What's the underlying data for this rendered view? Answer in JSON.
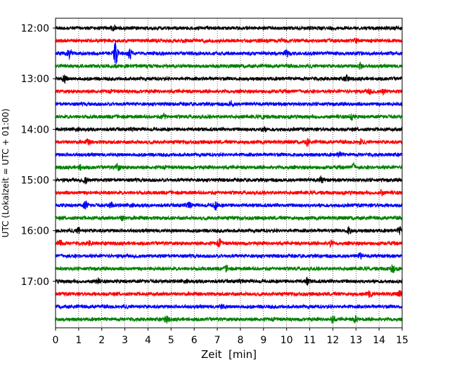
{
  "chart_data": {
    "type": "line",
    "title": "",
    "xlabel": "Zeit  [min]",
    "ylabel": "UTC (Lokalzeit = UTC + 01:00)",
    "xlim": [
      0,
      15
    ],
    "x_ticks": [
      0,
      1,
      2,
      3,
      4,
      5,
      6,
      7,
      8,
      9,
      10,
      11,
      12,
      13,
      14,
      15
    ],
    "grid": "vertical dotted lines at each minute",
    "ylim": [
      "12:00",
      "17:45"
    ],
    "y_tick_labels": [
      "12:00",
      "13:00",
      "14:00",
      "15:00",
      "16:00",
      "17:00"
    ],
    "trace_interval_minutes": 15,
    "color_cycle": [
      "#000000",
      "#ff0000",
      "#0000ff",
      "#008000"
    ],
    "series": [
      {
        "start": "12:00",
        "color": "#000000",
        "events": [
          {
            "t": 2.5,
            "amp": 1.5
          }
        ]
      },
      {
        "start": "12:15",
        "color": "#ff0000",
        "events": [
          {
            "t": 9.8,
            "amp": 1.2
          },
          {
            "t": 13.0,
            "amp": 1.0
          }
        ]
      },
      {
        "start": "12:30",
        "color": "#0000ff",
        "events": [
          {
            "t": 0.6,
            "amp": 2.6
          },
          {
            "t": 2.6,
            "amp": 6.5
          },
          {
            "t": 3.2,
            "amp": 3.0
          },
          {
            "t": 10.0,
            "amp": 2.2
          }
        ]
      },
      {
        "start": "12:45",
        "color": "#008000",
        "events": [
          {
            "t": 13.2,
            "amp": 1.5
          }
        ]
      },
      {
        "start": "13:00",
        "color": "#000000",
        "events": [
          {
            "t": 0.4,
            "amp": 1.8
          },
          {
            "t": 12.6,
            "amp": 1.4
          }
        ]
      },
      {
        "start": "13:15",
        "color": "#ff0000",
        "events": [
          {
            "t": 13.6,
            "amp": 1.4
          },
          {
            "t": 14.2,
            "amp": 1.2
          }
        ]
      },
      {
        "start": "13:30",
        "color": "#0000ff",
        "events": [
          {
            "t": 7.6,
            "amp": 1.3
          }
        ]
      },
      {
        "start": "13:45",
        "color": "#008000",
        "events": [
          {
            "t": 4.7,
            "amp": 1.4
          },
          {
            "t": 9.0,
            "amp": 1.3
          },
          {
            "t": 12.8,
            "amp": 1.5
          }
        ]
      },
      {
        "start": "14:00",
        "color": "#000000",
        "events": [
          {
            "t": 9.0,
            "amp": 1.3
          }
        ]
      },
      {
        "start": "14:15",
        "color": "#ff0000",
        "events": [
          {
            "t": 1.4,
            "amp": 1.4
          },
          {
            "t": 10.9,
            "amp": 1.7
          },
          {
            "t": 13.2,
            "amp": 1.3
          }
        ]
      },
      {
        "start": "14:30",
        "color": "#0000ff",
        "events": [
          {
            "t": 12.3,
            "amp": 1.3
          }
        ]
      },
      {
        "start": "14:45",
        "color": "#008000",
        "events": [
          {
            "t": 1.1,
            "amp": 1.2
          },
          {
            "t": 2.7,
            "amp": 1.9
          },
          {
            "t": 12.9,
            "amp": 1.9
          }
        ]
      },
      {
        "start": "15:00",
        "color": "#000000",
        "events": [
          {
            "t": 1.3,
            "amp": 1.6
          },
          {
            "t": 11.5,
            "amp": 1.4
          }
        ]
      },
      {
        "start": "15:15",
        "color": "#ff0000",
        "events": [
          {
            "t": 14.1,
            "amp": 1.2
          }
        ]
      },
      {
        "start": "15:30",
        "color": "#0000ff",
        "events": [
          {
            "t": 1.3,
            "amp": 2.1
          },
          {
            "t": 2.4,
            "amp": 1.4
          },
          {
            "t": 5.8,
            "amp": 1.3
          },
          {
            "t": 6.9,
            "amp": 2.4
          }
        ]
      },
      {
        "start": "15:45",
        "color": "#008000",
        "events": [
          {
            "t": 2.9,
            "amp": 1.1
          }
        ]
      },
      {
        "start": "16:00",
        "color": "#000000",
        "events": [
          {
            "t": 1.0,
            "amp": 1.4
          },
          {
            "t": 12.7,
            "amp": 1.6
          },
          {
            "t": 14.9,
            "amp": 1.7
          }
        ]
      },
      {
        "start": "16:15",
        "color": "#ff0000",
        "events": [
          {
            "t": 0.2,
            "amp": 1.5
          },
          {
            "t": 1.5,
            "amp": 1.3
          },
          {
            "t": 7.1,
            "amp": 1.8
          },
          {
            "t": 11.9,
            "amp": 1.4
          }
        ]
      },
      {
        "start": "16:30",
        "color": "#0000ff",
        "events": [
          {
            "t": 13.2,
            "amp": 1.4
          }
        ]
      },
      {
        "start": "16:45",
        "color": "#008000",
        "events": [
          {
            "t": 7.4,
            "amp": 1.3
          },
          {
            "t": 14.6,
            "amp": 2.2
          }
        ]
      },
      {
        "start": "17:00",
        "color": "#000000",
        "events": [
          {
            "t": 1.8,
            "amp": 1.3
          },
          {
            "t": 10.9,
            "amp": 1.7
          }
        ]
      },
      {
        "start": "17:15",
        "color": "#ff0000",
        "events": [
          {
            "t": 13.6,
            "amp": 1.7
          },
          {
            "t": 14.9,
            "amp": 1.3
          }
        ]
      },
      {
        "start": "17:30",
        "color": "#0000ff",
        "events": [
          {
            "t": 7.2,
            "amp": 1.1
          }
        ]
      },
      {
        "start": "17:45",
        "color": "#008000",
        "events": [
          {
            "t": 4.8,
            "amp": 1.6
          },
          {
            "t": 12.0,
            "amp": 1.8
          },
          {
            "t": 13.0,
            "amp": 1.4
          }
        ]
      }
    ]
  }
}
